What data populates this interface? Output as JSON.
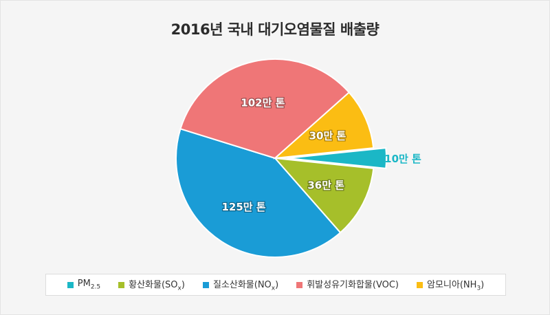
{
  "chart_data": {
    "type": "pie",
    "title": "2016년 국내 대기오염물질 배출량",
    "slices": [
      {
        "name": "PM2.5",
        "value": 10,
        "label": "10만 톤",
        "color": "#1bb7c6",
        "exploded": true
      },
      {
        "name": "황산화물(SOx)",
        "value": 36,
        "label": "36만 톤",
        "color": "#a6bf2a",
        "exploded": false
      },
      {
        "name": "질소산화물(NOx)",
        "value": 125,
        "label": "125만 톤",
        "color": "#1a9cd6",
        "exploded": false
      },
      {
        "name": "휘발성유기화합물(VOC)",
        "value": 102,
        "label": "102만 톤",
        "color": "#ef7677",
        "exploded": false
      },
      {
        "name": "암모니아(NH3)",
        "value": 30,
        "label": "30만 톤",
        "color": "#fbbd13",
        "exploded": false
      }
    ],
    "legend_position": "bottom"
  },
  "legend": {
    "items": [
      {
        "main": "PM",
        "sub": "2.5",
        "tail": "",
        "color": "#1bb7c6"
      },
      {
        "main": "황산화물(SO",
        "sub": "x",
        "tail": ")",
        "color": "#a6bf2a"
      },
      {
        "main": "질소산화물(NO",
        "sub": "x",
        "tail": ")",
        "color": "#1a9cd6"
      },
      {
        "main": "휘발성유기화합물(VOC)",
        "sub": "",
        "tail": "",
        "color": "#ef7677"
      },
      {
        "main": "암모니아(NH",
        "sub": "3",
        "tail": ")",
        "color": "#fbbd13"
      }
    ]
  }
}
